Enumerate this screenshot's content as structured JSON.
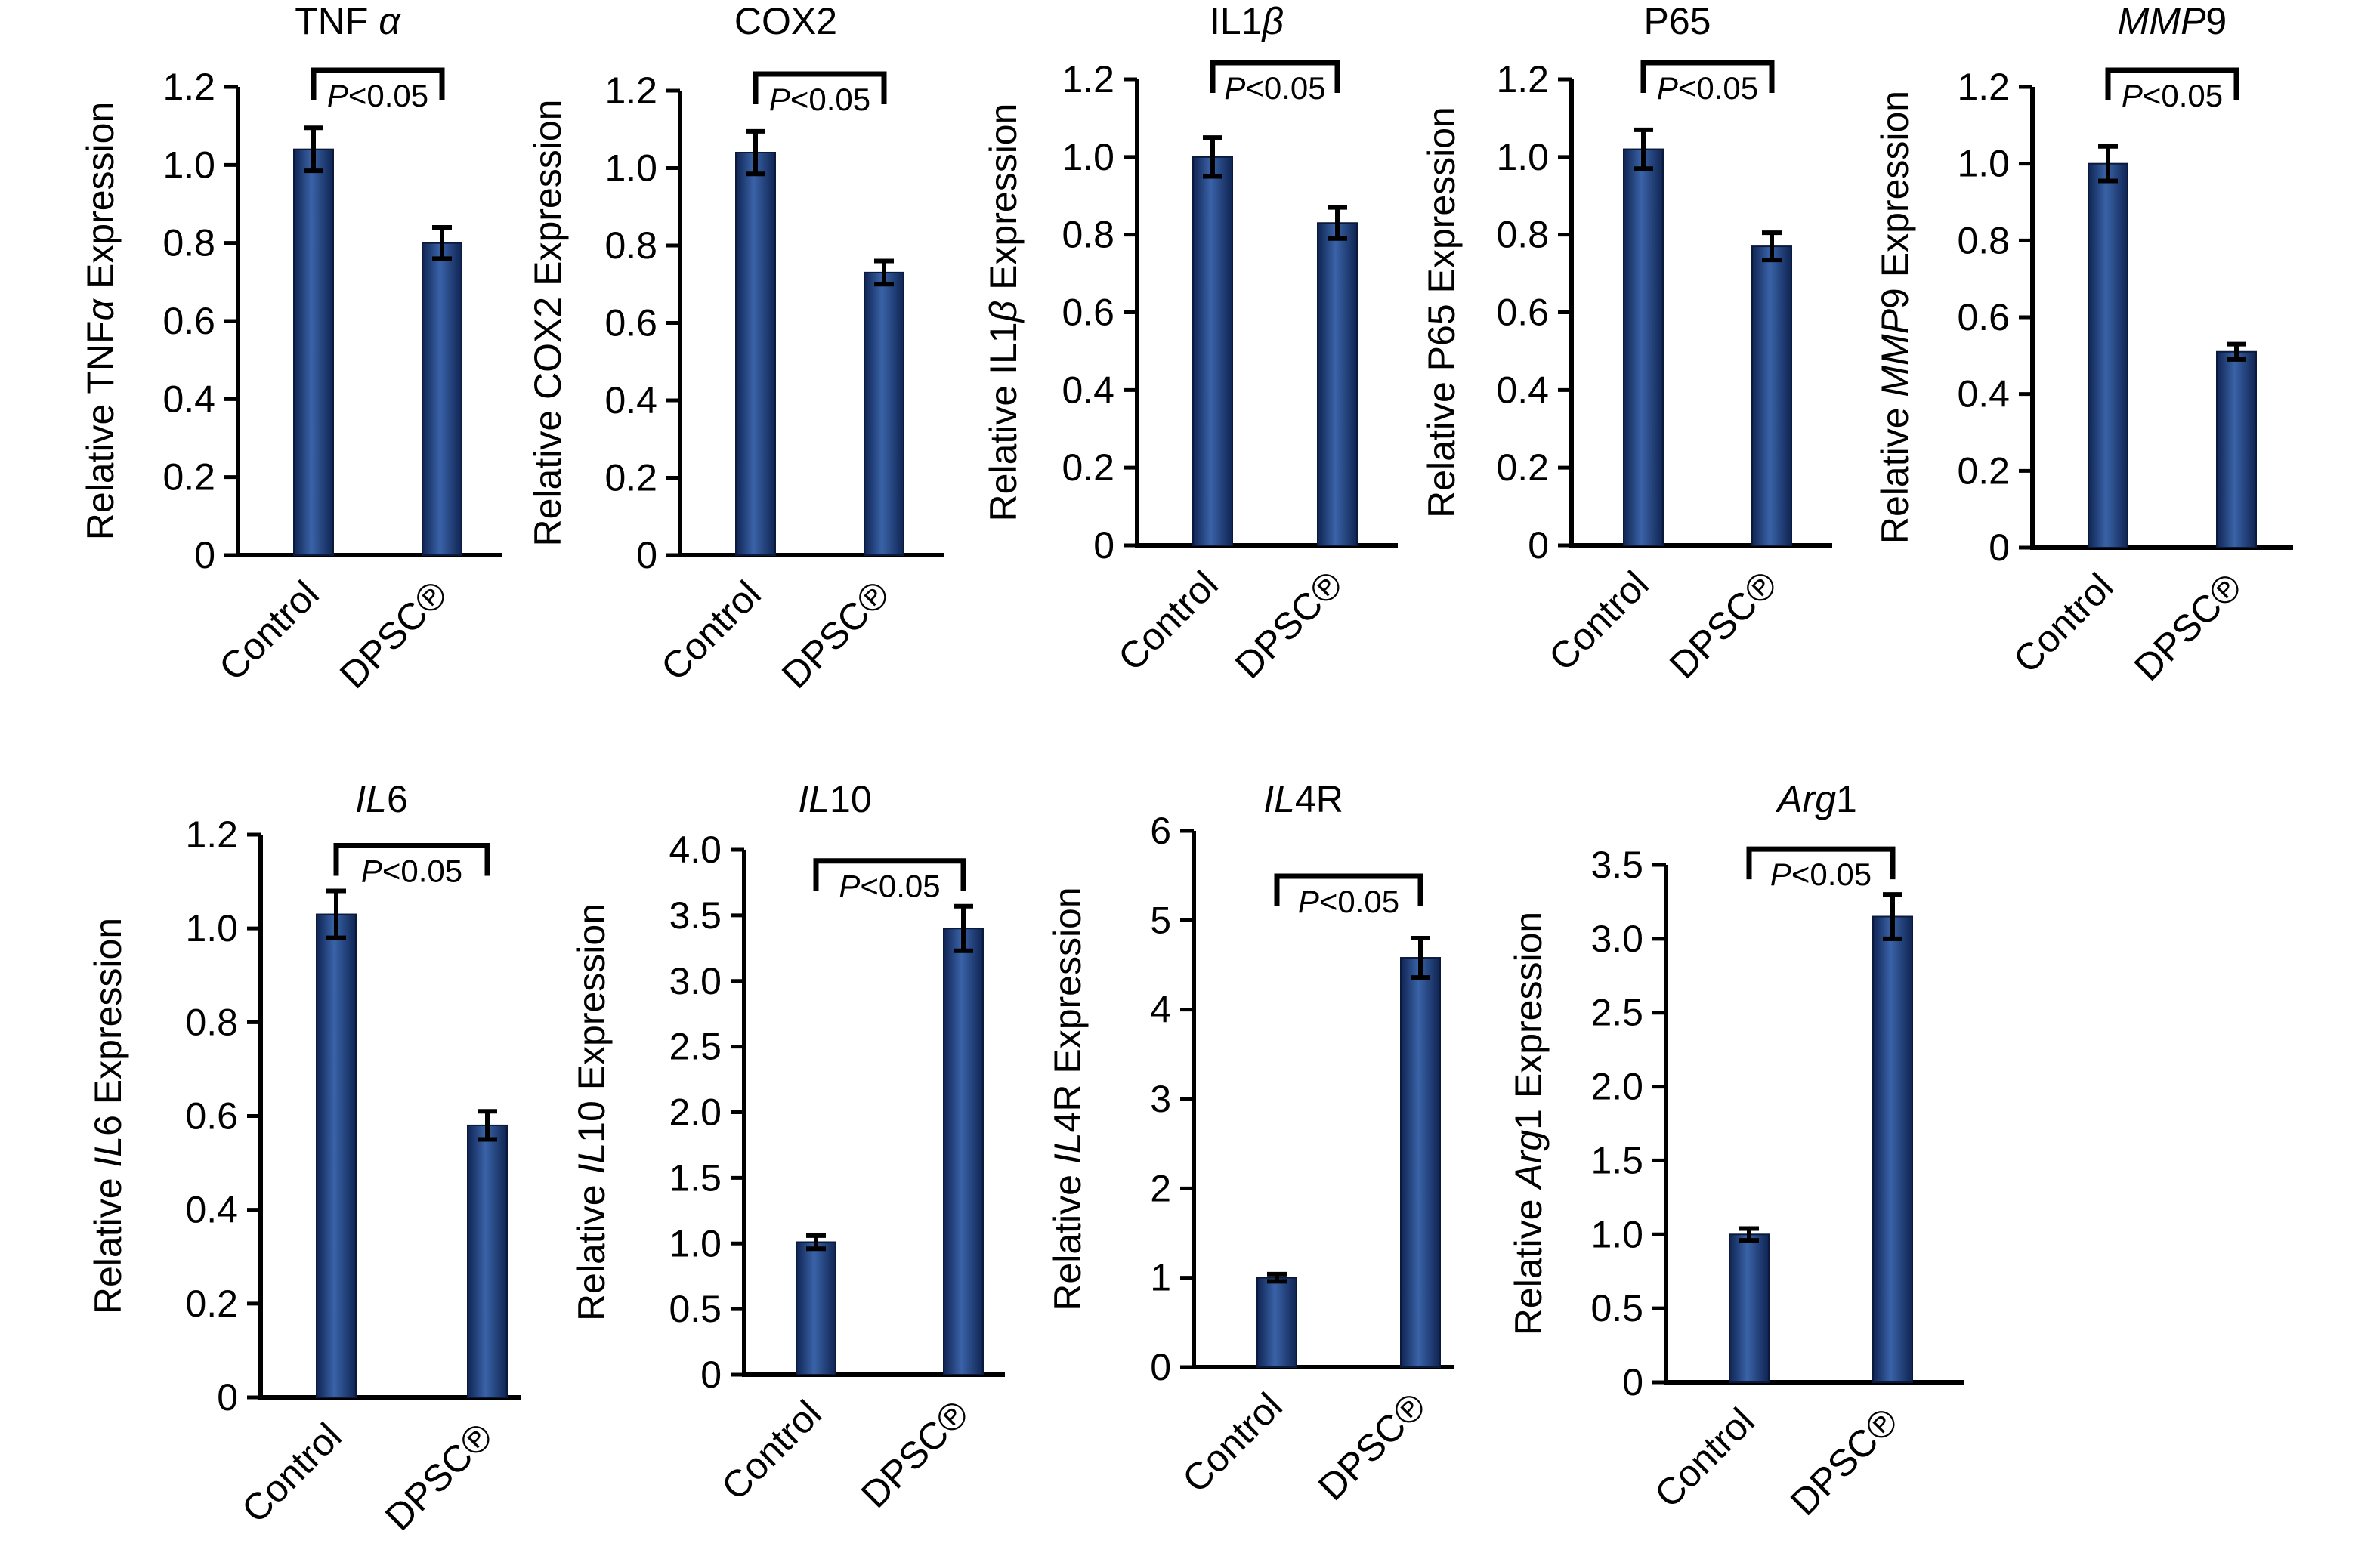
{
  "chart_data": [
    {
      "type": "bar",
      "title": "TNF α",
      "title_parts": [
        {
          "t": "TNF "
        },
        {
          "t": "α",
          "i": true
        }
      ],
      "ylabel": "Relative TNFα Expression",
      "ylabel_parts": [
        {
          "t": "Relative TNF"
        },
        {
          "t": "α",
          "i": true
        },
        {
          "t": " Expression"
        }
      ],
      "categories": [
        "Control",
        "DPSC℗"
      ],
      "values": [
        1.04,
        0.8
      ],
      "errors": [
        0.055,
        0.04
      ],
      "ylim": [
        0,
        1.2
      ],
      "yticks": [
        "0",
        "0.2",
        "0.4",
        "0.6",
        "0.8",
        "1.0",
        "1.2"
      ],
      "annotation": "P < 0.05",
      "color": "#2b4f8f"
    },
    {
      "type": "bar",
      "title": "COX2",
      "title_parts": [
        {
          "t": "COX2"
        }
      ],
      "ylabel": "Relative COX2 Expression",
      "ylabel_parts": [
        {
          "t": "Relative COX2 Expression"
        }
      ],
      "categories": [
        "Control",
        "DPSC℗"
      ],
      "values": [
        1.04,
        0.73
      ],
      "errors": [
        0.055,
        0.03
      ],
      "ylim": [
        0,
        1.2
      ],
      "yticks": [
        "0",
        "0.2",
        "0.4",
        "0.6",
        "0.8",
        "1.0",
        "1.2"
      ],
      "annotation": "P < 0.05",
      "color": "#2b4f8f"
    },
    {
      "type": "bar",
      "title": "IL1β",
      "title_parts": [
        {
          "t": "IL1"
        },
        {
          "t": "β",
          "i": true
        }
      ],
      "ylabel": "Relative IL1β Expression",
      "ylabel_parts": [
        {
          "t": "Relative IL1"
        },
        {
          "t": "β",
          "i": true
        },
        {
          "t": " Expression"
        }
      ],
      "categories": [
        "Control",
        "DPSC℗"
      ],
      "values": [
        1.0,
        0.83
      ],
      "errors": [
        0.05,
        0.04
      ],
      "ylim": [
        0,
        1.2
      ],
      "yticks": [
        "0",
        "0.2",
        "0.4",
        "0.6",
        "0.8",
        "1.0",
        "1.2"
      ],
      "annotation": "P < 0.05",
      "color": "#2b4f8f"
    },
    {
      "type": "bar",
      "title": "P65",
      "title_parts": [
        {
          "t": "P65"
        }
      ],
      "ylabel": "Relative P65 Expression",
      "ylabel_parts": [
        {
          "t": "Relative P65 Expression"
        }
      ],
      "categories": [
        "Control",
        "DPSC℗"
      ],
      "values": [
        1.02,
        0.77
      ],
      "errors": [
        0.05,
        0.035
      ],
      "ylim": [
        0,
        1.2
      ],
      "yticks": [
        "0",
        "0.2",
        "0.4",
        "0.6",
        "0.8",
        "1.0",
        "1.2"
      ],
      "annotation": "P < 0.05",
      "color": "#2b4f8f"
    },
    {
      "type": "bar",
      "title": "MMP9",
      "title_parts": [
        {
          "t": "MMP",
          "i": true
        },
        {
          "t": "9"
        }
      ],
      "ylabel": "Relative MMP9 Expression",
      "ylabel_parts": [
        {
          "t": "Relative "
        },
        {
          "t": "MMP",
          "i": true
        },
        {
          "t": "9 Expression"
        }
      ],
      "categories": [
        "Control",
        "DPSC℗"
      ],
      "values": [
        1.0,
        0.51
      ],
      "errors": [
        0.045,
        0.02
      ],
      "ylim": [
        0,
        1.2
      ],
      "yticks": [
        "0",
        "0.2",
        "0.4",
        "0.6",
        "0.8",
        "1.0",
        "1.2"
      ],
      "annotation": "P < 0.05",
      "color": "#2b4f8f"
    },
    {
      "type": "bar",
      "title": "IL6",
      "title_parts": [
        {
          "t": "IL",
          "i": true
        },
        {
          "t": "6"
        }
      ],
      "ylabel": "Relative IL6 Expression",
      "ylabel_parts": [
        {
          "t": "Relative "
        },
        {
          "t": "IL",
          "i": true
        },
        {
          "t": "6 Expression"
        }
      ],
      "categories": [
        "Control",
        "DPSC℗"
      ],
      "values": [
        1.03,
        0.58
      ],
      "errors": [
        0.05,
        0.03
      ],
      "ylim": [
        0,
        1.2
      ],
      "yticks": [
        "0",
        "0.2",
        "0.4",
        "0.6",
        "0.8",
        "1.0",
        "1.2"
      ],
      "annotation": "P < 0.05",
      "color": "#2b4f8f"
    },
    {
      "type": "bar",
      "title": "IL10",
      "title_parts": [
        {
          "t": "IL",
          "i": true
        },
        {
          "t": "10"
        }
      ],
      "ylabel": "Relative IL10 Expression",
      "ylabel_parts": [
        {
          "t": "Relative "
        },
        {
          "t": "IL",
          "i": true
        },
        {
          "t": "10 Expression"
        }
      ],
      "categories": [
        "Control",
        "DPSC℗"
      ],
      "values": [
        1.01,
        3.4
      ],
      "errors": [
        0.05,
        0.17
      ],
      "ylim": [
        0,
        4.0
      ],
      "yticks": [
        "0",
        "0.5",
        "1.0",
        "1.5",
        "2.0",
        "2.5",
        "3.0",
        "3.5",
        "4.0"
      ],
      "annotation": "P < 0.05",
      "color": "#2b4f8f"
    },
    {
      "type": "bar",
      "title": "IL4R",
      "title_parts": [
        {
          "t": "IL",
          "i": true
        },
        {
          "t": "4R"
        }
      ],
      "ylabel": "Relative IL4R Expression",
      "ylabel_parts": [
        {
          "t": "Relative "
        },
        {
          "t": "IL",
          "i": true
        },
        {
          "t": "4R Expression"
        }
      ],
      "categories": [
        "Control",
        "DPSC℗"
      ],
      "values": [
        1.0,
        4.58
      ],
      "errors": [
        0.04,
        0.22
      ],
      "ylim": [
        0,
        6
      ],
      "yticks": [
        "0",
        "1",
        "2",
        "3",
        "4",
        "5",
        "6"
      ],
      "annotation": "P < 0.05",
      "color": "#2b4f8f"
    },
    {
      "type": "bar",
      "title": "Arg1",
      "title_parts": [
        {
          "t": "Arg",
          "i": true
        },
        {
          "t": "1"
        }
      ],
      "ylabel": "Relative Arg1 Expression",
      "ylabel_parts": [
        {
          "t": "Relative "
        },
        {
          "t": "Arg",
          "i": true
        },
        {
          "t": "1 Expression"
        }
      ],
      "categories": [
        "Control",
        "DPSC℗"
      ],
      "values": [
        1.0,
        3.15
      ],
      "errors": [
        0.04,
        0.15
      ],
      "ylim": [
        0,
        3.5
      ],
      "yticks": [
        "0",
        "0.5",
        "1.0",
        "1.5",
        "2.0",
        "2.5",
        "3.0",
        "3.5"
      ],
      "annotation": "P < 0.05",
      "color": "#2b4f8f"
    }
  ]
}
